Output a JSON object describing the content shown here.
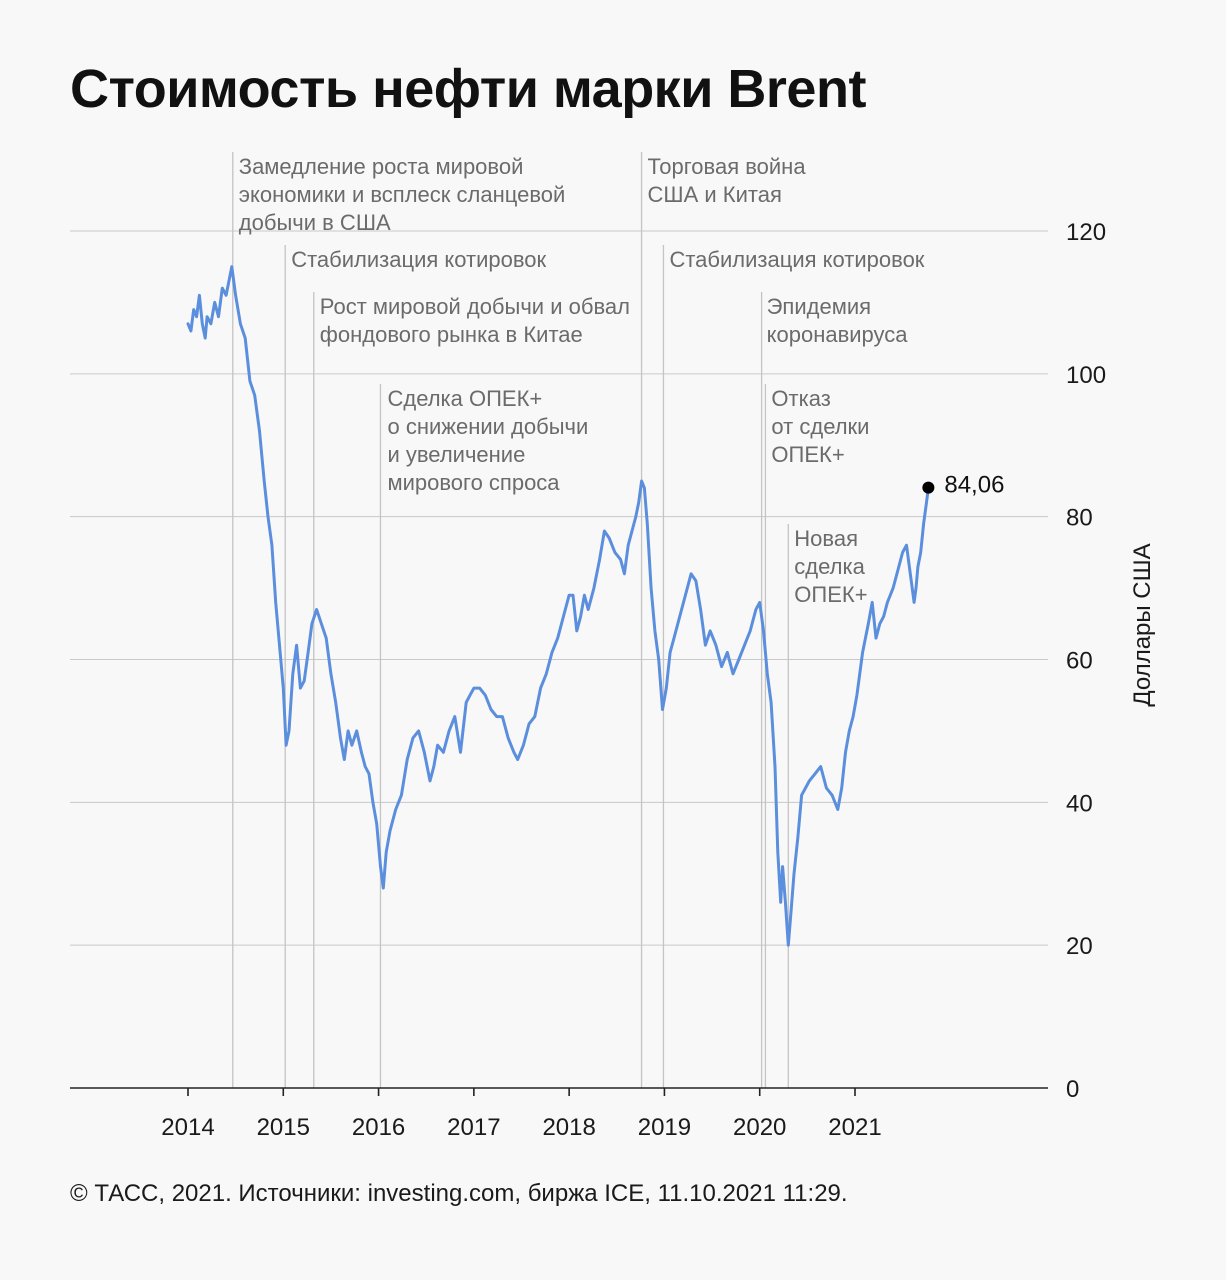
{
  "title": "Стоимость нефти марки Brent",
  "footer": "© ТАСС, 2021. Источники: investing.com, биржа ICE, 11.10.2021 11:29.",
  "colors": {
    "line": "#5b8fdd",
    "marker": "#000000",
    "gridline": "#c9c9c9",
    "eventline": "#c4c4c4"
  },
  "chart_data": {
    "type": "line",
    "title": "Стоимость нефти марки Brent",
    "ylabel": "Доллары США",
    "xlabel": "",
    "ylim": [
      0,
      120
    ],
    "yticks": [
      0,
      20,
      40,
      60,
      80,
      100,
      120
    ],
    "yticklabels": [
      "0",
      "20",
      "40",
      "60",
      "80",
      "100",
      "120"
    ],
    "xticks": [
      2014,
      2015,
      2016,
      2017,
      2018,
      2019,
      2020,
      2021
    ],
    "xticklabels": [
      "2014",
      "2015",
      "2016",
      "2017",
      "2018",
      "2019",
      "2020",
      "2021"
    ],
    "grid": true,
    "last_value": {
      "x": 2021.77,
      "y": 84.06,
      "label": "84,06"
    },
    "series": [
      {
        "values": [
          [
            2014.0,
            107
          ],
          [
            2014.03,
            106
          ],
          [
            2014.06,
            109
          ],
          [
            2014.09,
            108
          ],
          [
            2014.12,
            111
          ],
          [
            2014.15,
            107
          ],
          [
            2014.18,
            105
          ],
          [
            2014.2,
            108
          ],
          [
            2014.24,
            107
          ],
          [
            2014.28,
            110
          ],
          [
            2014.32,
            108
          ],
          [
            2014.36,
            112
          ],
          [
            2014.4,
            111
          ],
          [
            2014.46,
            115
          ],
          [
            2014.5,
            111
          ],
          [
            2014.55,
            107
          ],
          [
            2014.6,
            105
          ],
          [
            2014.65,
            99
          ],
          [
            2014.7,
            97
          ],
          [
            2014.75,
            92
          ],
          [
            2014.8,
            85
          ],
          [
            2014.84,
            80
          ],
          [
            2014.88,
            76
          ],
          [
            2014.92,
            68
          ],
          [
            2014.96,
            62
          ],
          [
            2015.0,
            56
          ],
          [
            2015.03,
            48
          ],
          [
            2015.06,
            50
          ],
          [
            2015.1,
            58
          ],
          [
            2015.14,
            62
          ],
          [
            2015.18,
            56
          ],
          [
            2015.22,
            57
          ],
          [
            2015.26,
            61
          ],
          [
            2015.3,
            65
          ],
          [
            2015.35,
            67
          ],
          [
            2015.4,
            65
          ],
          [
            2015.45,
            63
          ],
          [
            2015.5,
            58
          ],
          [
            2015.55,
            54
          ],
          [
            2015.6,
            49
          ],
          [
            2015.64,
            46
          ],
          [
            2015.68,
            50
          ],
          [
            2015.72,
            48
          ],
          [
            2015.77,
            50
          ],
          [
            2015.82,
            47
          ],
          [
            2015.86,
            45
          ],
          [
            2015.9,
            44
          ],
          [
            2015.94,
            40
          ],
          [
            2015.98,
            37
          ],
          [
            2016.02,
            31
          ],
          [
            2016.05,
            28
          ],
          [
            2016.08,
            33
          ],
          [
            2016.12,
            36
          ],
          [
            2016.18,
            39
          ],
          [
            2016.24,
            41
          ],
          [
            2016.3,
            46
          ],
          [
            2016.36,
            49
          ],
          [
            2016.42,
            50
          ],
          [
            2016.48,
            47
          ],
          [
            2016.54,
            43
          ],
          [
            2016.58,
            45
          ],
          [
            2016.62,
            48
          ],
          [
            2016.68,
            47
          ],
          [
            2016.74,
            50
          ],
          [
            2016.8,
            52
          ],
          [
            2016.86,
            47
          ],
          [
            2016.92,
            54
          ],
          [
            2016.96,
            55
          ],
          [
            2017.0,
            56
          ],
          [
            2017.06,
            56
          ],
          [
            2017.12,
            55
          ],
          [
            2017.18,
            53
          ],
          [
            2017.24,
            52
          ],
          [
            2017.3,
            52
          ],
          [
            2017.36,
            49
          ],
          [
            2017.42,
            47
          ],
          [
            2017.46,
            46
          ],
          [
            2017.52,
            48
          ],
          [
            2017.58,
            51
          ],
          [
            2017.64,
            52
          ],
          [
            2017.7,
            56
          ],
          [
            2017.76,
            58
          ],
          [
            2017.82,
            61
          ],
          [
            2017.88,
            63
          ],
          [
            2017.94,
            66
          ],
          [
            2018.0,
            69
          ],
          [
            2018.04,
            69
          ],
          [
            2018.08,
            64
          ],
          [
            2018.12,
            66
          ],
          [
            2018.16,
            69
          ],
          [
            2018.2,
            67
          ],
          [
            2018.26,
            70
          ],
          [
            2018.32,
            74
          ],
          [
            2018.37,
            78
          ],
          [
            2018.42,
            77
          ],
          [
            2018.48,
            75
          ],
          [
            2018.54,
            74
          ],
          [
            2018.58,
            72
          ],
          [
            2018.62,
            76
          ],
          [
            2018.66,
            78
          ],
          [
            2018.7,
            80
          ],
          [
            2018.73,
            82
          ],
          [
            2018.76,
            85
          ],
          [
            2018.79,
            84
          ],
          [
            2018.82,
            79
          ],
          [
            2018.86,
            70
          ],
          [
            2018.9,
            64
          ],
          [
            2018.94,
            60
          ],
          [
            2018.98,
            53
          ],
          [
            2019.02,
            56
          ],
          [
            2019.06,
            61
          ],
          [
            2019.1,
            63
          ],
          [
            2019.16,
            66
          ],
          [
            2019.22,
            69
          ],
          [
            2019.28,
            72
          ],
          [
            2019.33,
            71
          ],
          [
            2019.38,
            67
          ],
          [
            2019.43,
            62
          ],
          [
            2019.48,
            64
          ],
          [
            2019.54,
            62
          ],
          [
            2019.6,
            59
          ],
          [
            2019.66,
            61
          ],
          [
            2019.72,
            58
          ],
          [
            2019.78,
            60
          ],
          [
            2019.84,
            62
          ],
          [
            2019.9,
            64
          ],
          [
            2019.96,
            67
          ],
          [
            2020.0,
            68
          ],
          [
            2020.04,
            64
          ],
          [
            2020.08,
            58
          ],
          [
            2020.12,
            54
          ],
          [
            2020.16,
            45
          ],
          [
            2020.19,
            33
          ],
          [
            2020.22,
            26
          ],
          [
            2020.24,
            31
          ],
          [
            2020.27,
            26
          ],
          [
            2020.3,
            20
          ],
          [
            2020.33,
            25
          ],
          [
            2020.36,
            30
          ],
          [
            2020.4,
            35
          ],
          [
            2020.44,
            41
          ],
          [
            2020.48,
            42
          ],
          [
            2020.52,
            43
          ],
          [
            2020.58,
            44
          ],
          [
            2020.64,
            45
          ],
          [
            2020.7,
            42
          ],
          [
            2020.76,
            41
          ],
          [
            2020.82,
            39
          ],
          [
            2020.86,
            42
          ],
          [
            2020.9,
            47
          ],
          [
            2020.94,
            50
          ],
          [
            2020.98,
            52
          ],
          [
            2021.02,
            55
          ],
          [
            2021.08,
            61
          ],
          [
            2021.14,
            65
          ],
          [
            2021.18,
            68
          ],
          [
            2021.22,
            63
          ],
          [
            2021.26,
            65
          ],
          [
            2021.3,
            66
          ],
          [
            2021.34,
            68
          ],
          [
            2021.4,
            70
          ],
          [
            2021.46,
            73
          ],
          [
            2021.5,
            75
          ],
          [
            2021.54,
            76
          ],
          [
            2021.58,
            72
          ],
          [
            2021.62,
            68
          ],
          [
            2021.64,
            70
          ],
          [
            2021.66,
            73
          ],
          [
            2021.69,
            75
          ],
          [
            2021.72,
            79
          ],
          [
            2021.75,
            82
          ],
          [
            2021.77,
            84.06
          ]
        ]
      }
    ],
    "annotations": [
      {
        "x": 2014.47,
        "lines": [
          "Замедление роста мировой",
          "экономики и всплеск сланцевой",
          "добычи в США"
        ]
      },
      {
        "x": 2015.02,
        "lines": [
          "Стабилизация котировок"
        ]
      },
      {
        "x": 2015.32,
        "lines": [
          "Рост мировой добычи и обвал",
          "фондового рынка в Китае"
        ]
      },
      {
        "x": 2016.02,
        "lines": [
          "Сделка ОПЕК+",
          "о снижении добычи",
          "и увеличение",
          "мирового спроса"
        ]
      },
      {
        "x": 2018.76,
        "lines": [
          "Торговая война",
          "США и Китая"
        ]
      },
      {
        "x": 2018.99,
        "lines": [
          "Стабилизация котировок"
        ]
      },
      {
        "x": 2020.02,
        "lines": [
          "Эпидемия",
          "коронавируса"
        ]
      },
      {
        "x": 2020.06,
        "lines": [
          "Отказ",
          "от сделки",
          "ОПЕК+"
        ]
      },
      {
        "x": 2020.3,
        "lines": [
          "Новая",
          "сделка",
          "ОПЕК+"
        ]
      }
    ]
  }
}
